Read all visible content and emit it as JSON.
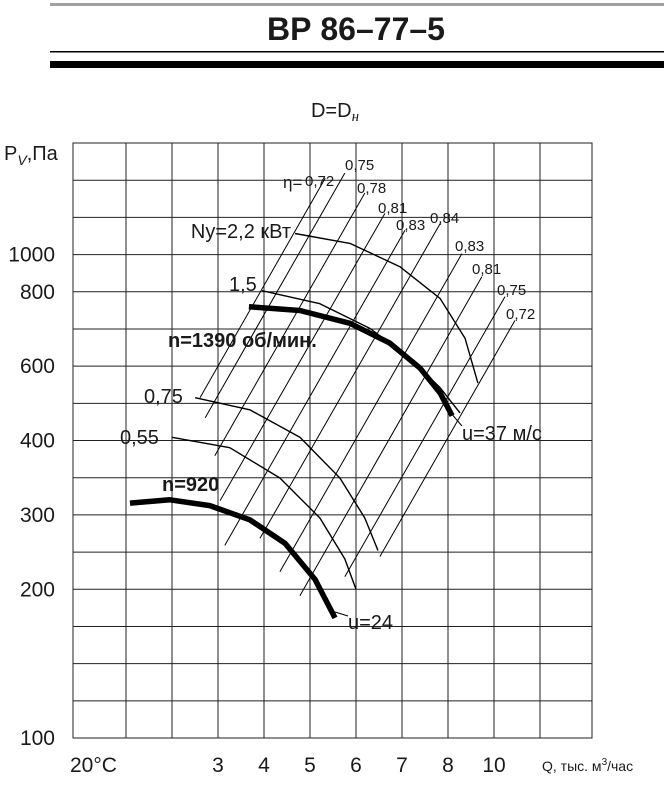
{
  "title": "ВР 86–77–5",
  "subtitle": {
    "main": "D=D",
    "subscript": "н"
  },
  "chart_data": {
    "type": "line",
    "log_scale": true,
    "grid": true,
    "y_label": {
      "symbol": "P",
      "subscript": "V",
      "unit": ",Па"
    },
    "x_label": {
      "main": "Q, тыс. м",
      "superscript": "3",
      "unit": "/час"
    },
    "temperature": "20°C",
    "xticks": [
      3,
      4,
      5,
      6,
      7,
      8,
      10
    ],
    "yticks": [
      100,
      200,
      300,
      400,
      600,
      800,
      1000
    ],
    "eta_symbol": "η=",
    "u_labels": [
      "u=37 м/с",
      "u=24"
    ],
    "color": "#000000",
    "speed_curves": [
      {
        "name": "n=1390 об/мин.",
        "x": [
          3.64,
          4.76,
          5.86,
          6.72,
          7.38,
          7.82,
          8.16
        ],
        "values": [
          755,
          744,
          708,
          656,
          593,
          518,
          458
        ]
      },
      {
        "name": "n=920",
        "x": [
          1.73,
          2.22,
          2.85,
          3.66,
          4.43,
          5.1,
          5.52
        ],
        "values": [
          314,
          318,
          311,
          292,
          257,
          211,
          175
        ]
      }
    ],
    "power_curves": [
      {
        "name": "Ny=2,2 кВт",
        "x": [
          4.65,
          5.86,
          6.95,
          7.82,
          8.69,
          9.25
        ],
        "values": [
          1135,
          1069,
          930,
          779,
          668,
          547
        ]
      },
      {
        "name": "1,5",
        "x": [
          3.95,
          5.2,
          6.29,
          7.16,
          7.82,
          8.48
        ],
        "values": [
          805,
          764,
          694,
          619,
          533,
          465
        ]
      },
      {
        "name": "0,75",
        "x": [
          2.6,
          3.66,
          4.76,
          5.63,
          6.18,
          6.46
        ],
        "values": [
          505,
          473,
          407,
          346,
          295,
          247
        ]
      },
      {
        "name": "0,55",
        "x": [
          2.25,
          3.23,
          4.32,
          5.2,
          5.74,
          6.0
        ],
        "values": [
          407,
          389,
          346,
          295,
          236,
          200
        ]
      }
    ],
    "efficiency_lines": [
      {
        "name": "0,72",
        "x": [
          2.68,
          5.31
        ],
        "values": [
          505,
          1581
        ]
      },
      {
        "name": "0,75",
        "x": [
          2.77,
          5.74
        ],
        "values": [
          453,
          1630
        ]
      },
      {
        "name": "0,78",
        "x": [
          2.94,
          6.18
        ],
        "values": [
          377,
          1446
        ]
      },
      {
        "name": "0,81",
        "x": [
          3.04,
          6.61
        ],
        "values": [
          317,
          1280
        ]
      },
      {
        "name": "0,83",
        "x": [
          3.13,
          7.06
        ],
        "values": [
          254,
          1156
        ]
      },
      {
        "name": "0,84",
        "x": [
          3.9,
          7.82
        ],
        "values": [
          264,
          1205
        ]
      },
      {
        "name": "0,83",
        "x": [
          4.32,
          8.56
        ],
        "values": [
          220,
          1006
        ]
      },
      {
        "name": "0,81",
        "x": [
          4.76,
          9.43
        ],
        "values": [
          194,
          876
        ]
      },
      {
        "name": "0,75",
        "x": [
          5.74,
          10.55
        ],
        "values": [
          214,
          785
        ]
      },
      {
        "name": "0,72",
        "x": [
          6.5,
          11.07
        ],
        "values": [
          239,
          716
        ]
      }
    ]
  }
}
